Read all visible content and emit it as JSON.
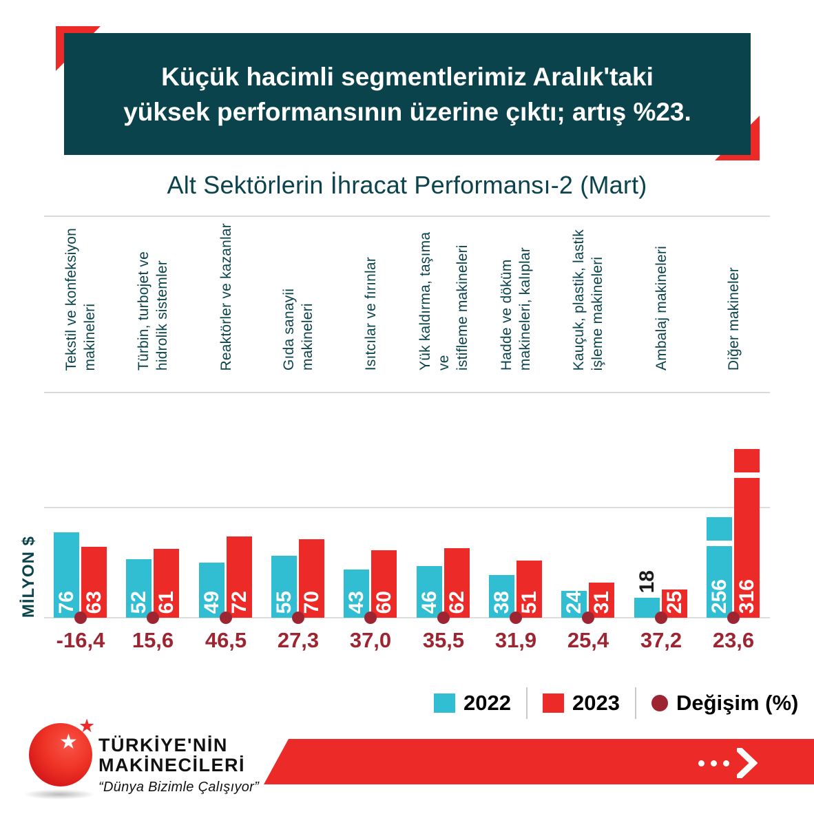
{
  "banner": {
    "line1": "Küçük hacimli segmentlerimiz Aralık'taki",
    "line2": "yüksek performansının üzerine çıktı; artış %23."
  },
  "chart_data": {
    "type": "bar",
    "title": "Alt Sektörlerin İhracat Performansı-2 (Mart)",
    "ylabel": "MİLYON $",
    "grid": "baseline plus one horizontal gridline",
    "legend_position": "bottom-right",
    "categories": [
      [
        "Tekstil ve konfeksiyon",
        "makineleri"
      ],
      [
        "Türbin, turbojet ve",
        "hidrolik sistemler"
      ],
      [
        "Reaktörler ve kazanlar"
      ],
      [
        "Gıda sanayii makineleri"
      ],
      [
        "Isıtcılar ve fırınlar"
      ],
      [
        "Yük kaldırma, taşıma ve",
        "istifleme makineleri"
      ],
      [
        "Hadde ve döküm",
        "makineleri, kalıplar"
      ],
      [
        "Kauçuk, plastik, lastik",
        "işleme makineleri"
      ],
      [
        "Ambalaj makineleri"
      ],
      [
        "Diğer makineler"
      ]
    ],
    "series": [
      {
        "name": "2022",
        "color": "#31bdd2",
        "values": [
          76,
          52,
          49,
          55,
          43,
          46,
          38,
          24,
          18,
          256
        ]
      },
      {
        "name": "2023",
        "color": "#ec2b28",
        "values": [
          63,
          61,
          72,
          70,
          60,
          62,
          51,
          31,
          25,
          316
        ]
      }
    ],
    "changes": [
      "-16,4",
      "15,6",
      "46,5",
      "27,3",
      "37,0",
      "35,5",
      "31,9",
      "25,4",
      "37,2",
      "23,6"
    ],
    "change_legend_label": "Değişim (%)",
    "axis_break": {
      "group_index": 9,
      "note": "last pair drawn with broken-axis gap marks"
    }
  },
  "footer": {
    "brand_line1": "TÜRKİYE'NİN",
    "brand_line2": "MAKİNECİLERİ",
    "tagline": "“Dünya Bizimle Çalışıyor”",
    "star": "★"
  },
  "colors": {
    "teal_dark": "#0a434c",
    "cyan": "#31bdd2",
    "red": "#ec2b28",
    "maroon": "#9c2531",
    "grid": "#d9d9d9"
  }
}
